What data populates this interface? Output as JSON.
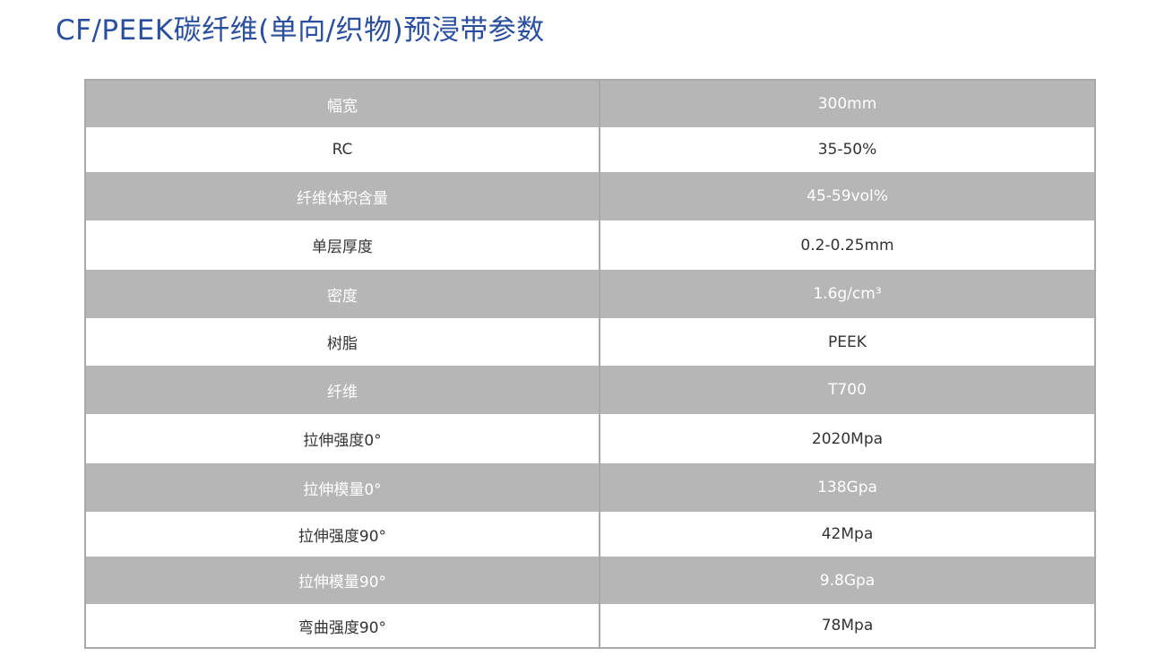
{
  "header": {
    "title": "CF/PEEK碳纤维(单向/织物)预浸带参数"
  },
  "table": {
    "rows": [
      [
        "幅宽",
        "300mm"
      ],
      [
        "RC",
        "35-50%"
      ],
      [
        "纤维体积含量",
        "45-59vol%"
      ],
      [
        "单层厚度",
        "0.2-0.25mm"
      ],
      [
        "密度",
        "1.6g/cm³"
      ],
      [
        "树脂",
        "PEEK"
      ],
      [
        "纤维",
        "T700"
      ],
      [
        "拉伸强度0°",
        "2020Mpa"
      ],
      [
        "拉伸模量0°",
        "138Gpa"
      ],
      [
        "拉伸强度90°",
        "42Mpa"
      ],
      [
        "拉伸模量90°",
        "9.8Gpa"
      ],
      [
        "弯曲强度90°",
        "78Mpa"
      ]
    ]
  }
}
